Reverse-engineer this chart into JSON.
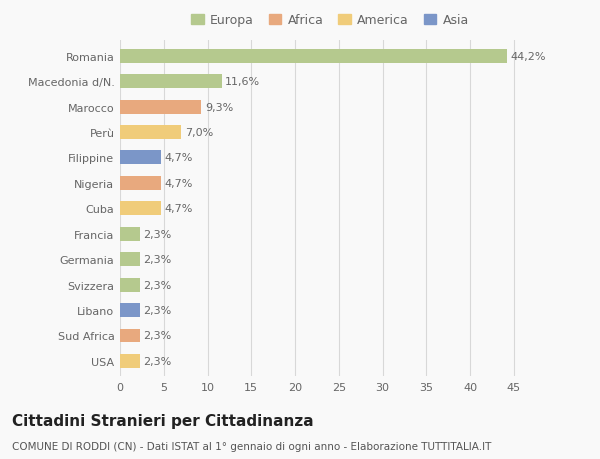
{
  "categories": [
    "Romania",
    "Macedonia d/N.",
    "Marocco",
    "Perù",
    "Filippine",
    "Nigeria",
    "Cuba",
    "Francia",
    "Germania",
    "Svizzera",
    "Libano",
    "Sud Africa",
    "USA"
  ],
  "values": [
    44.2,
    11.6,
    9.3,
    7.0,
    4.7,
    4.7,
    4.7,
    2.3,
    2.3,
    2.3,
    2.3,
    2.3,
    2.3
  ],
  "labels": [
    "44,2%",
    "11,6%",
    "9,3%",
    "7,0%",
    "4,7%",
    "4,7%",
    "4,7%",
    "2,3%",
    "2,3%",
    "2,3%",
    "2,3%",
    "2,3%",
    "2,3%"
  ],
  "colors": [
    "#b5c98e",
    "#b5c98e",
    "#e8a97e",
    "#f0cc7a",
    "#7b96c8",
    "#e8a97e",
    "#f0cc7a",
    "#b5c98e",
    "#b5c98e",
    "#b5c98e",
    "#7b96c8",
    "#e8a97e",
    "#f0cc7a"
  ],
  "legend_labels": [
    "Europa",
    "Africa",
    "America",
    "Asia"
  ],
  "legend_colors": [
    "#b5c98e",
    "#e8a97e",
    "#f0cc7a",
    "#7b96c8"
  ],
  "title": "Cittadini Stranieri per Cittadinanza",
  "subtitle": "COMUNE DI RODDI (CN) - Dati ISTAT al 1° gennaio di ogni anno - Elaborazione TUTTITALIA.IT",
  "xlabel_ticks": [
    0,
    5,
    10,
    15,
    20,
    25,
    30,
    35,
    40,
    45
  ],
  "xlim": [
    0,
    48
  ],
  "background_color": "#f9f9f9",
  "grid_color": "#d8d8d8",
  "bar_height": 0.55,
  "title_fontsize": 11,
  "subtitle_fontsize": 7.5,
  "label_fontsize": 8,
  "tick_fontsize": 8,
  "legend_fontsize": 9
}
